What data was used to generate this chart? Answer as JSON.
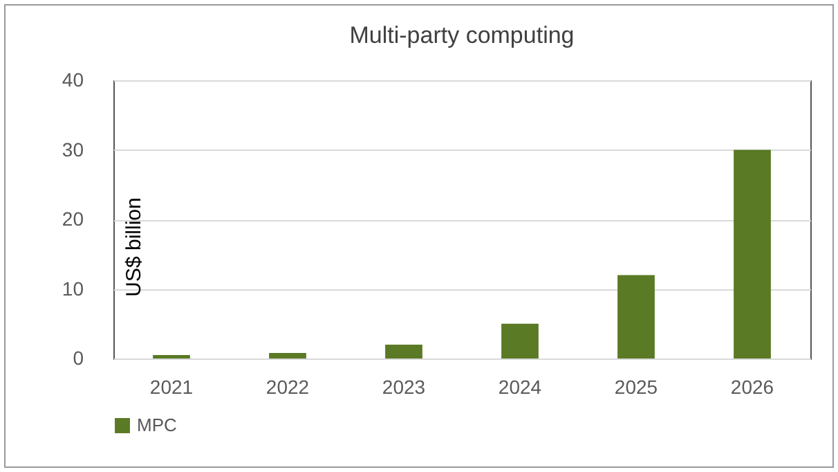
{
  "chart_data": {
    "type": "bar",
    "title": "Multi-party computing",
    "ylabel": "US$ billion",
    "categories": [
      "2021",
      "2022",
      "2023",
      "2024",
      "2025",
      "2026"
    ],
    "series": [
      {
        "name": "MPC",
        "color": "#5a7a25",
        "values": [
          0.5,
          0.8,
          2,
          5,
          12,
          30
        ]
      }
    ],
    "ylim": [
      0,
      40
    ],
    "yticks": [
      0,
      10,
      20,
      30,
      40
    ],
    "grid": "y",
    "legend": "bottom"
  }
}
